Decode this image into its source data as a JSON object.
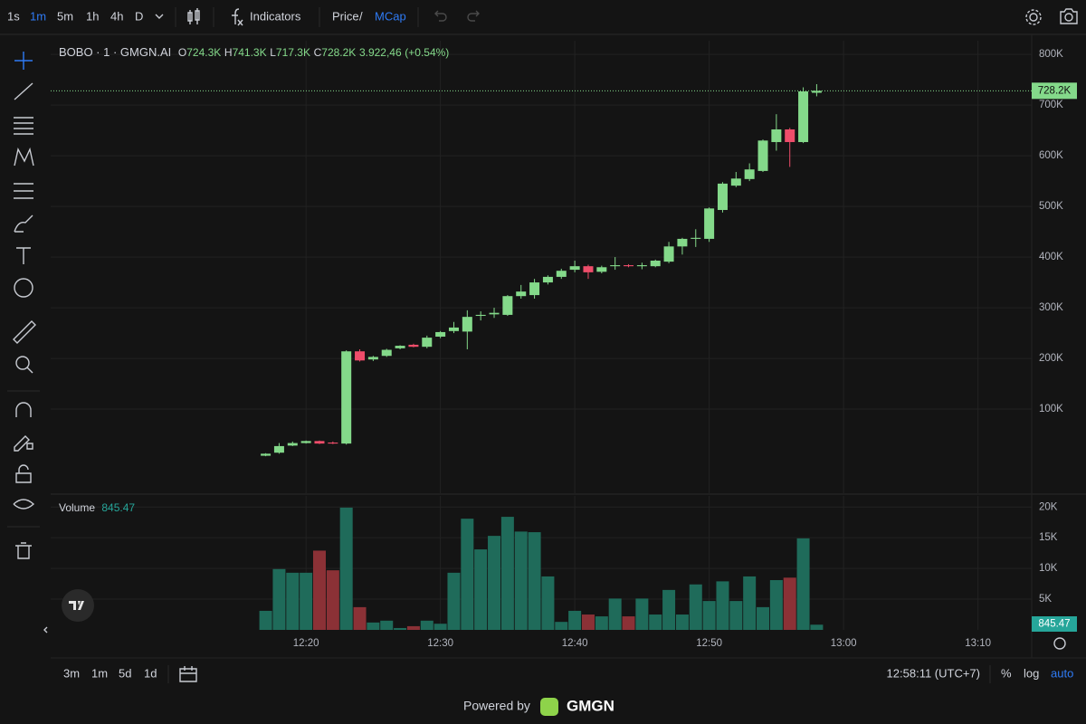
{
  "toolbar": {
    "intervals": [
      "1s",
      "1m",
      "5m",
      "1h",
      "4h",
      "D"
    ],
    "indicators": "Indicators",
    "price": "Price",
    "separator": "/",
    "mcap": "MCap"
  },
  "chart_data": [
    {
      "type": "candlestick",
      "title": "BOBO · 1 · GMGN.AI",
      "legend": {
        "o": "O",
        "open": "724.3K",
        "h": "H",
        "high": "741.3K",
        "l": "L",
        "low": "717.3K",
        "c": "C",
        "close": "728.2K",
        "change": "3.922,46",
        "change_pct": "(+0.54%)"
      },
      "x": [
        "12:17",
        "12:18",
        "12:19",
        "12:20",
        "12:21",
        "12:22",
        "12:23",
        "12:24",
        "12:25",
        "12:26",
        "12:27",
        "12:28",
        "12:29",
        "12:30",
        "12:31",
        "12:32",
        "12:33",
        "12:34",
        "12:35",
        "12:36",
        "12:37",
        "12:38",
        "12:39",
        "12:40",
        "12:41",
        "12:42",
        "12:43",
        "12:44",
        "12:45",
        "12:46",
        "12:47",
        "12:48",
        "12:49",
        "12:50",
        "12:51",
        "12:52",
        "12:53",
        "12:54",
        "12:55",
        "12:56",
        "12:57",
        "12:58"
      ],
      "open": [
        8000,
        14000,
        28000,
        33000,
        37000,
        34000,
        32000,
        214000,
        198000,
        205000,
        220000,
        227000,
        223000,
        243000,
        254000,
        253000,
        284000,
        287000,
        286000,
        323000,
        325000,
        350000,
        361000,
        375000,
        382000,
        371000,
        382000,
        384000,
        382000,
        382000,
        391000,
        421000,
        436000,
        436000,
        493000,
        541000,
        554000,
        570000,
        627000,
        652000,
        627000,
        724300
      ],
      "high": [
        13000,
        33000,
        36000,
        38000,
        38000,
        36000,
        216000,
        218000,
        205000,
        219000,
        226000,
        229000,
        245000,
        254000,
        272000,
        295000,
        293000,
        300000,
        325000,
        345000,
        357000,
        364000,
        377000,
        393000,
        385000,
        383000,
        400000,
        386000,
        389000,
        395000,
        430000,
        438000,
        455000,
        498000,
        548000,
        568000,
        585000,
        632000,
        682000,
        655000,
        735000,
        741300
      ],
      "low": [
        7000,
        12000,
        27000,
        32000,
        31000,
        31000,
        30000,
        194000,
        195000,
        203000,
        218000,
        222000,
        220000,
        240000,
        250000,
        218000,
        275000,
        280000,
        284000,
        318000,
        318000,
        346000,
        357000,
        370000,
        357000,
        368000,
        375000,
        380000,
        376000,
        380000,
        388000,
        405000,
        420000,
        430000,
        488000,
        538000,
        550000,
        568000,
        610000,
        578000,
        625000,
        717300
      ],
      "close": [
        12000,
        27000,
        33000,
        37000,
        32000,
        32000,
        214000,
        196000,
        203000,
        217000,
        225000,
        223000,
        241000,
        252000,
        261000,
        282000,
        286000,
        290000,
        323000,
        332000,
        350000,
        361000,
        373000,
        382000,
        370000,
        380000,
        384000,
        382000,
        384000,
        393000,
        421000,
        436000,
        438000,
        496000,
        545000,
        555000,
        573000,
        630000,
        652000,
        627000,
        727000,
        728200
      ],
      "last_value_label": "728.2K",
      "up_color": "#84d98a",
      "down_color": "#ee4d6a",
      "xlim": [
        "12:01",
        "13:14"
      ],
      "ylim": [
        -66000,
        827000
      ],
      "yticks": [
        {
          "value": 100000,
          "label": "100K"
        },
        {
          "value": 200000,
          "label": "200K"
        },
        {
          "value": 300000,
          "label": "300K"
        },
        {
          "value": 400000,
          "label": "400K"
        },
        {
          "value": 500000,
          "label": "500K"
        },
        {
          "value": 600000,
          "label": "600K"
        },
        {
          "value": 700000,
          "label": "700K"
        },
        {
          "value": 800000,
          "label": "800K"
        }
      ],
      "grid": true
    },
    {
      "type": "bar",
      "title": "Volume",
      "last_value_label": "845.47",
      "x": [
        "12:17",
        "12:18",
        "12:19",
        "12:20",
        "12:21",
        "12:22",
        "12:23",
        "12:24",
        "12:25",
        "12:26",
        "12:27",
        "12:28",
        "12:29",
        "12:30",
        "12:31",
        "12:32",
        "12:33",
        "12:34",
        "12:35",
        "12:36",
        "12:37",
        "12:38",
        "12:39",
        "12:40",
        "12:41",
        "12:42",
        "12:43",
        "12:44",
        "12:45",
        "12:46",
        "12:47",
        "12:48",
        "12:49",
        "12:50",
        "12:51",
        "12:52",
        "12:53",
        "12:54",
        "12:55",
        "12:56",
        "12:57",
        "12:58"
      ],
      "values": [
        3100,
        9900,
        9300,
        9300,
        12900,
        9700,
        19900,
        3700,
        1200,
        1500,
        300,
        600,
        1500,
        1000,
        9300,
        18100,
        13100,
        15300,
        18400,
        16000,
        15900,
        8700,
        1300,
        3100,
        2500,
        2200,
        5100,
        2200,
        5100,
        2500,
        6500,
        2500,
        7400,
        4700,
        7900,
        4700,
        8700,
        3700,
        8100,
        8500,
        14900,
        845.47
      ],
      "up_color": "#1f6b5a",
      "down_color": "#8b3136",
      "xlim": [
        "12:01",
        "13:14"
      ],
      "ylim": [
        0,
        21800
      ],
      "yticks": [
        {
          "value": 5000,
          "label": "5K"
        },
        {
          "value": 10000,
          "label": "10K"
        },
        {
          "value": 15000,
          "label": "15K"
        },
        {
          "value": 20000,
          "label": "20K"
        }
      ],
      "xticks": [
        "12:20",
        "12:30",
        "12:40",
        "12:50",
        "13:00",
        "13:10"
      ],
      "grid": true
    }
  ],
  "footer": {
    "ranges": [
      "3m",
      "1m",
      "5d",
      "1d"
    ],
    "clock": "12:58:11 (UTC+7)",
    "percent": "%",
    "log": "log",
    "auto": "auto",
    "powered_by": "Powered by",
    "brand": "GMGN"
  }
}
